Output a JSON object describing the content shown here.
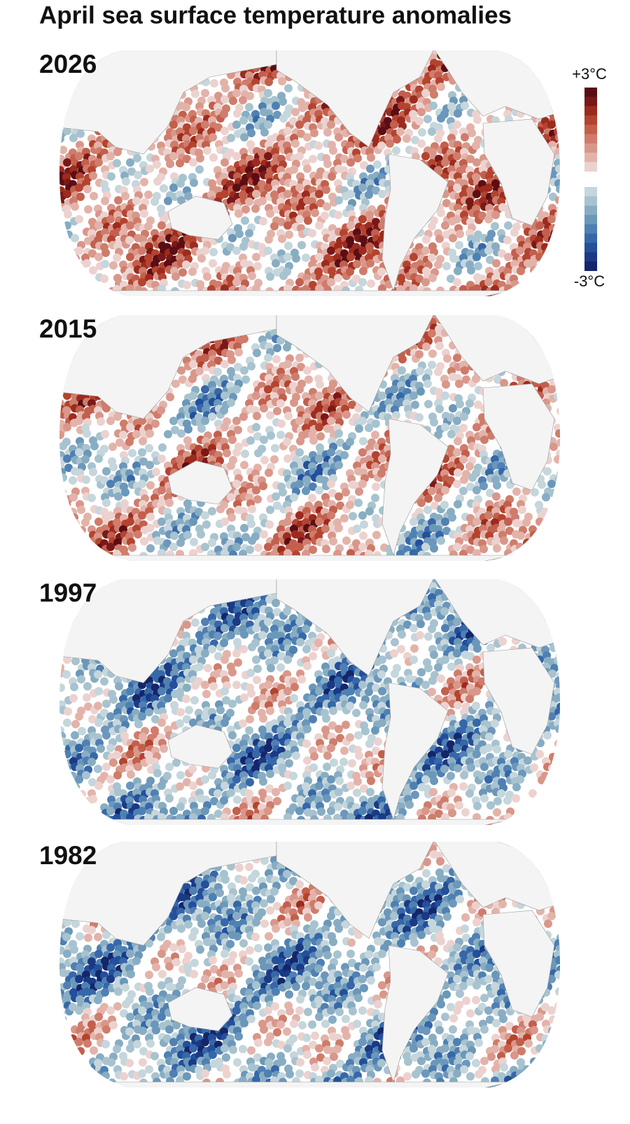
{
  "header": {
    "title": "April sea surface temperature anomalies"
  },
  "panels": [
    {
      "label": "2026"
    },
    {
      "label": "2015"
    },
    {
      "label": "1997"
    },
    {
      "label": "1982"
    }
  ],
  "legend": {
    "max_label": "+3°C",
    "min_label": "-3°C"
  }
}
